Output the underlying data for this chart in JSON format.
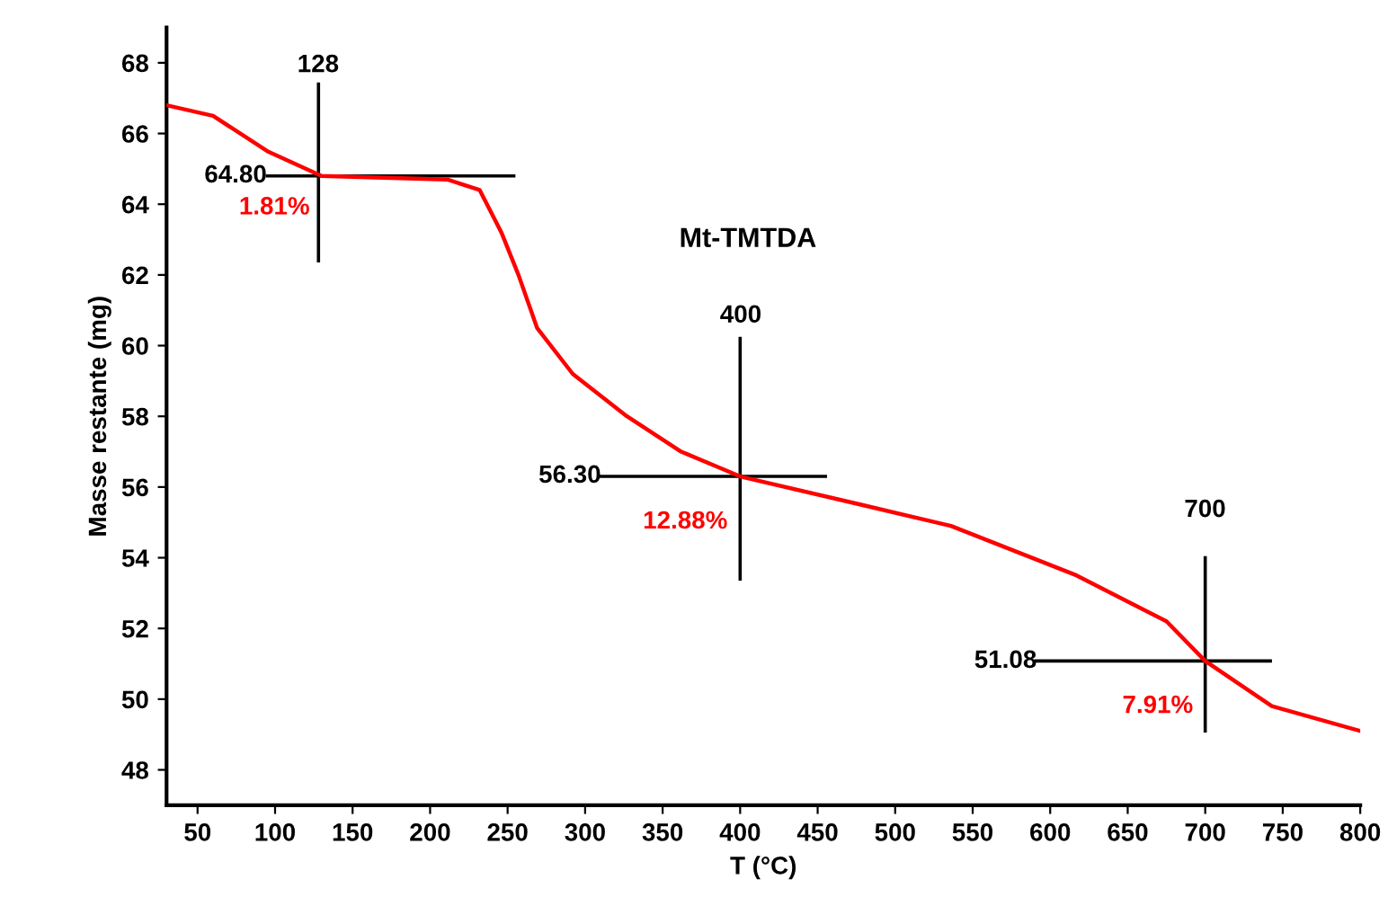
{
  "chart_data": {
    "type": "line",
    "xlabel": "T (°C)",
    "ylabel": "Masse restante (mg)",
    "xlim": [
      30,
      800
    ],
    "ylim": [
      47,
      69
    ],
    "xticks": [
      50,
      100,
      150,
      200,
      250,
      300,
      350,
      400,
      450,
      500,
      550,
      600,
      650,
      700,
      750,
      800
    ],
    "yticks": [
      48,
      50,
      52,
      54,
      56,
      58,
      60,
      62,
      64,
      66,
      68
    ],
    "grid": false,
    "legend": false,
    "marker": "none",
    "line_style": "solid",
    "series": [
      {
        "color": "#ff0000",
        "x": [
          30,
          60,
          95,
          130,
          211,
          232,
          246,
          257,
          269,
          292,
          327,
          362,
          400,
          478,
          536,
          617,
          675,
          700,
          743,
          800
        ],
        "values": [
          66.8,
          66.5,
          65.5,
          64.8,
          64.7,
          64.4,
          63.2,
          62.0,
          60.5,
          59.2,
          58.0,
          57.0,
          56.3,
          55.5,
          54.9,
          53.5,
          52.2,
          51.08,
          49.8,
          49.1
        ]
      },
      {
        "color": "#000000",
        "x": [
          128,
          128
        ],
        "values": [
          62.4,
          67.4
        ]
      },
      {
        "color": "#000000",
        "x": [
          95,
          254
        ],
        "values": [
          64.8,
          64.8
        ]
      },
      {
        "color": "#000000",
        "x": [
          400,
          400
        ],
        "values": [
          53.4,
          60.2
        ]
      },
      {
        "color": "#000000",
        "x": [
          310,
          455
        ],
        "values": [
          56.3,
          56.3
        ]
      },
      {
        "color": "#000000",
        "x": [
          700,
          700
        ],
        "values": [
          49.1,
          54.0
        ]
      },
      {
        "color": "#000000",
        "x": [
          591,
          742
        ],
        "values": [
          51.08,
          51.08
        ]
      }
    ],
    "annotations": [
      "Mt-TMTDA",
      "128",
      "64.80",
      "1.81%",
      "400",
      "56.30",
      "12.88%",
      "700",
      "51.08",
      "7.91%"
    ]
  }
}
